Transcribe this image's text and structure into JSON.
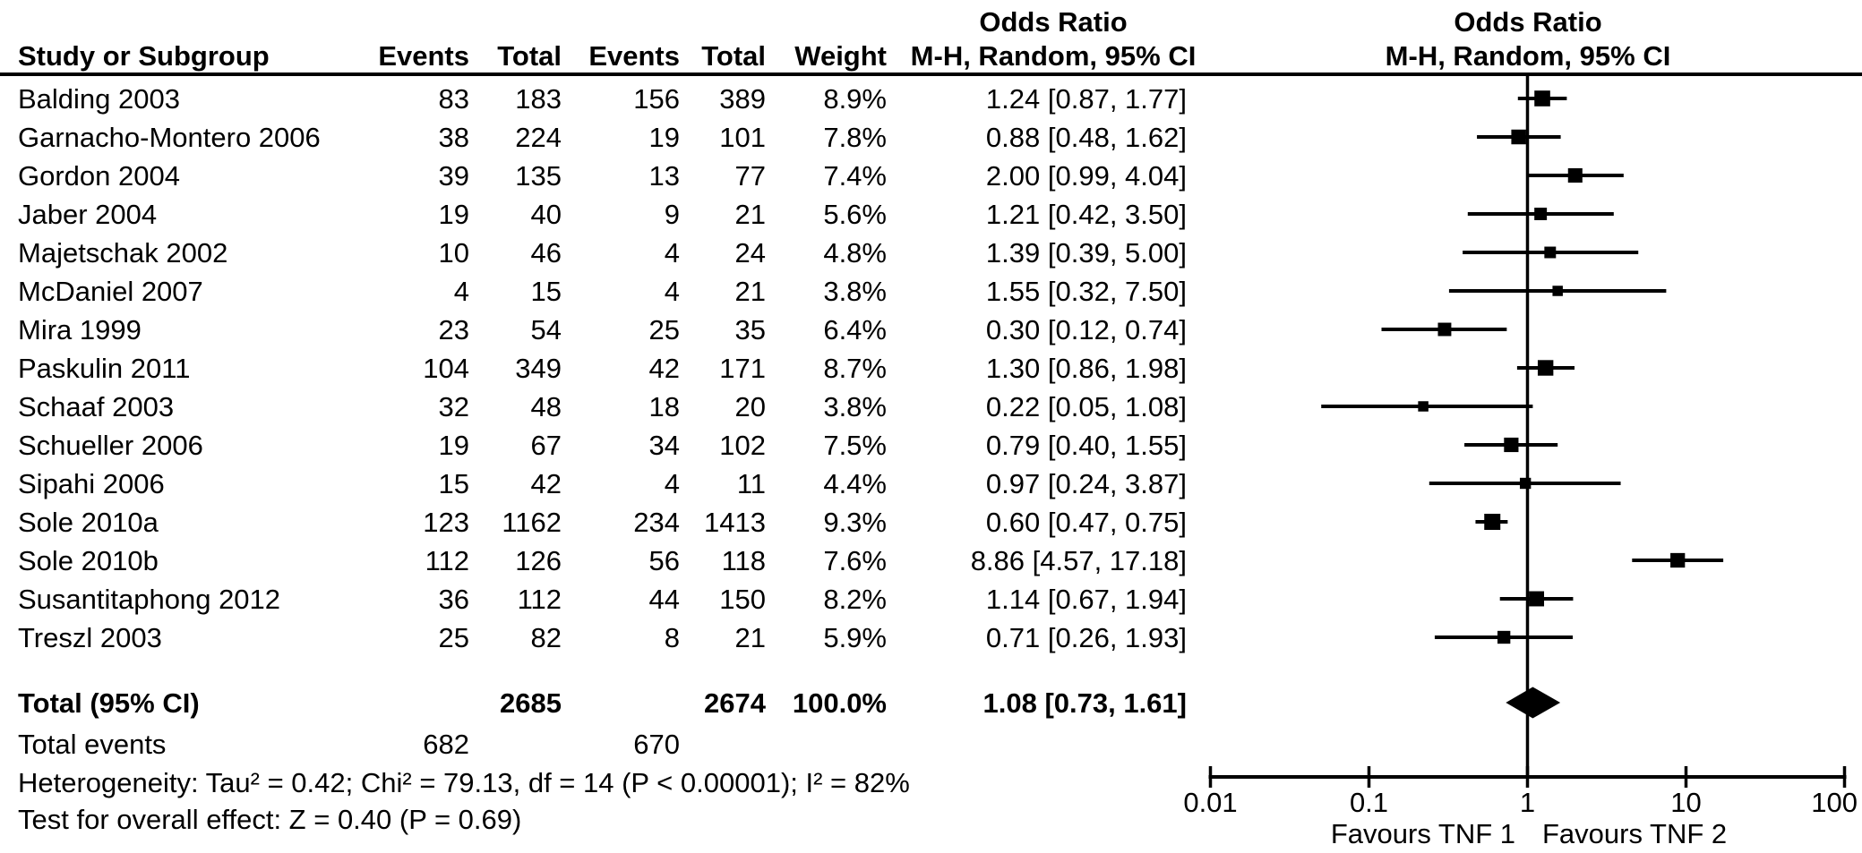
{
  "header": {
    "or_col_title_line1": "Odds Ratio",
    "or_col_title_line2": "M-H, Random, 95% CI",
    "plot_title_line1": "Odds Ratio",
    "plot_title_line2": "M-H, Random, 95% CI",
    "columns": {
      "study": "Study or Subgroup",
      "events1": "Events",
      "total1": "Total",
      "events2": "Events",
      "total2": "Total",
      "weight": "Weight"
    }
  },
  "chart_data": {
    "type": "forest",
    "effect_measure": "Odds Ratio, M-H, Random, 95% CI",
    "x_scale": "log10",
    "axis": {
      "ticks": [
        0.01,
        0.1,
        1,
        10,
        100
      ],
      "tick_labels": [
        "0.01",
        "0.1",
        "1",
        "10",
        "100"
      ],
      "favours_left": "Favours TNF 1",
      "favours_right": "Favours TNF 2"
    },
    "studies": [
      {
        "name": "Balding 2003",
        "events1": 83,
        "total1": 183,
        "events2": 156,
        "total2": 389,
        "weight": 8.9,
        "weight_label": "8.9%",
        "or": 1.24,
        "ci_low": 0.87,
        "ci_high": 1.77,
        "or_label": "1.24 [0.87, 1.77]"
      },
      {
        "name": "Garnacho-Montero 2006",
        "events1": 38,
        "total1": 224,
        "events2": 19,
        "total2": 101,
        "weight": 7.8,
        "weight_label": "7.8%",
        "or": 0.88,
        "ci_low": 0.48,
        "ci_high": 1.62,
        "or_label": "0.88 [0.48, 1.62]"
      },
      {
        "name": "Gordon 2004",
        "events1": 39,
        "total1": 135,
        "events2": 13,
        "total2": 77,
        "weight": 7.4,
        "weight_label": "7.4%",
        "or": 2.0,
        "ci_low": 0.99,
        "ci_high": 4.04,
        "or_label": "2.00 [0.99, 4.04]"
      },
      {
        "name": "Jaber 2004",
        "events1": 19,
        "total1": 40,
        "events2": 9,
        "total2": 21,
        "weight": 5.6,
        "weight_label": "5.6%",
        "or": 1.21,
        "ci_low": 0.42,
        "ci_high": 3.5,
        "or_label": "1.21 [0.42, 3.50]"
      },
      {
        "name": "Majetschak 2002",
        "events1": 10,
        "total1": 46,
        "events2": 4,
        "total2": 24,
        "weight": 4.8,
        "weight_label": "4.8%",
        "or": 1.39,
        "ci_low": 0.39,
        "ci_high": 5.0,
        "or_label": "1.39 [0.39, 5.00]"
      },
      {
        "name": "McDaniel 2007",
        "events1": 4,
        "total1": 15,
        "events2": 4,
        "total2": 21,
        "weight": 3.8,
        "weight_label": "3.8%",
        "or": 1.55,
        "ci_low": 0.32,
        "ci_high": 7.5,
        "or_label": "1.55 [0.32, 7.50]"
      },
      {
        "name": "Mira 1999",
        "events1": 23,
        "total1": 54,
        "events2": 25,
        "total2": 35,
        "weight": 6.4,
        "weight_label": "6.4%",
        "or": 0.3,
        "ci_low": 0.12,
        "ci_high": 0.74,
        "or_label": "0.30 [0.12, 0.74]"
      },
      {
        "name": "Paskulin 2011",
        "events1": 104,
        "total1": 349,
        "events2": 42,
        "total2": 171,
        "weight": 8.7,
        "weight_label": "8.7%",
        "or": 1.3,
        "ci_low": 0.86,
        "ci_high": 1.98,
        "or_label": "1.30 [0.86, 1.98]"
      },
      {
        "name": "Schaaf 2003",
        "events1": 32,
        "total1": 48,
        "events2": 18,
        "total2": 20,
        "weight": 3.8,
        "weight_label": "3.8%",
        "or": 0.22,
        "ci_low": 0.05,
        "ci_high": 1.08,
        "or_label": "0.22 [0.05, 1.08]"
      },
      {
        "name": "Schueller 2006",
        "events1": 19,
        "total1": 67,
        "events2": 34,
        "total2": 102,
        "weight": 7.5,
        "weight_label": "7.5%",
        "or": 0.79,
        "ci_low": 0.4,
        "ci_high": 1.55,
        "or_label": "0.79 [0.40, 1.55]"
      },
      {
        "name": "Sipahi 2006",
        "events1": 15,
        "total1": 42,
        "events2": 4,
        "total2": 11,
        "weight": 4.4,
        "weight_label": "4.4%",
        "or": 0.97,
        "ci_low": 0.24,
        "ci_high": 3.87,
        "or_label": "0.97 [0.24, 3.87]"
      },
      {
        "name": "Sole 2010a",
        "events1": 123,
        "total1": 1162,
        "events2": 234,
        "total2": 1413,
        "weight": 9.3,
        "weight_label": "9.3%",
        "or": 0.6,
        "ci_low": 0.47,
        "ci_high": 0.75,
        "or_label": "0.60 [0.47, 0.75]"
      },
      {
        "name": "Sole 2010b",
        "events1": 112,
        "total1": 126,
        "events2": 56,
        "total2": 118,
        "weight": 7.6,
        "weight_label": "7.6%",
        "or": 8.86,
        "ci_low": 4.57,
        "ci_high": 17.18,
        "or_label": "8.86 [4.57, 17.18]"
      },
      {
        "name": "Susantitaphong 2012",
        "events1": 36,
        "total1": 112,
        "events2": 44,
        "total2": 150,
        "weight": 8.2,
        "weight_label": "8.2%",
        "or": 1.14,
        "ci_low": 0.67,
        "ci_high": 1.94,
        "or_label": "1.14 [0.67, 1.94]"
      },
      {
        "name": "Treszl 2003",
        "events1": 25,
        "total1": 82,
        "events2": 8,
        "total2": 21,
        "weight": 5.9,
        "weight_label": "5.9%",
        "or": 0.71,
        "ci_low": 0.26,
        "ci_high": 1.93,
        "or_label": "0.71 [0.26, 1.93]"
      }
    ],
    "total": {
      "label": "Total (95% CI)",
      "total1": 2685,
      "total2": 2674,
      "weight": 100.0,
      "weight_label": "100.0%",
      "or": 1.08,
      "ci_low": 0.73,
      "ci_high": 1.61,
      "or_label": "1.08 [0.73, 1.61]"
    },
    "total_events": {
      "label": "Total events",
      "events1": 682,
      "events2": 670
    },
    "heterogeneity": "Heterogeneity: Tau² = 0.42; Chi² = 79.13, df = 14 (P < 0.00001); I² = 82%",
    "overall_effect": "Test for overall effect: Z = 0.40 (P = 0.69)",
    "colors": {
      "foreground": "#000000",
      "background": "#ffffff"
    }
  }
}
